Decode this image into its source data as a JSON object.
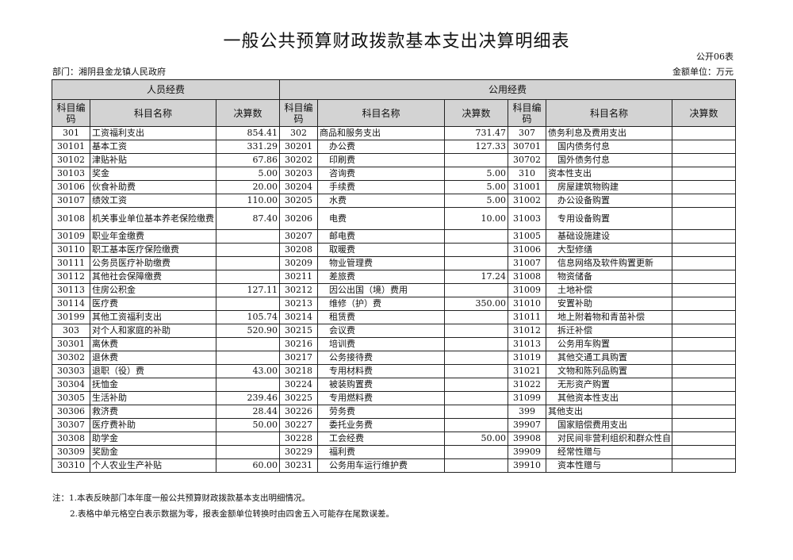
{
  "title": "一般公共预算财政拨款基本支出决算明细表",
  "form_no": "公开06表",
  "department": "部门：湘阴县金龙镇人民政府",
  "unit": "金额单位：万元",
  "headers": {
    "group_personnel": "人员经费",
    "group_public": "公用经费",
    "code": "科目编码",
    "name": "科目名称",
    "amount": "决算数"
  },
  "rows": [
    [
      "301",
      "工资福利支出",
      "854.41",
      "302",
      "商品和服务支出",
      "731.47",
      "307",
      "债务利息及费用支出",
      ""
    ],
    [
      "30101",
      "基本工资",
      "331.29",
      "30201",
      "办公费",
      "127.33",
      "30701",
      "国内债务付息",
      ""
    ],
    [
      "30102",
      "津贴补贴",
      "67.86",
      "30202",
      "印刷费",
      "",
      "30702",
      "国外债务付息",
      ""
    ],
    [
      "30103",
      "奖金",
      "5.00",
      "30203",
      "咨询费",
      "5.00",
      "310",
      "资本性支出",
      ""
    ],
    [
      "30106",
      "伙食补助费",
      "20.00",
      "30204",
      "手续费",
      "5.00",
      "31001",
      "房屋建筑物购建",
      ""
    ],
    [
      "30107",
      "绩效工资",
      "110.00",
      "30205",
      "水费",
      "5.00",
      "31002",
      "办公设备购置",
      ""
    ],
    [
      "30108",
      "机关事业单位基本养老保险缴费",
      "87.40",
      "30206",
      "电费",
      "10.00",
      "31003",
      "专用设备购置",
      ""
    ],
    [
      "30109",
      "职业年金缴费",
      "",
      "30207",
      "邮电费",
      "",
      "31005",
      "基础设施建设",
      ""
    ],
    [
      "30110",
      "职工基本医疗保险缴费",
      "",
      "30208",
      "取暖费",
      "",
      "31006",
      "大型修缮",
      ""
    ],
    [
      "30111",
      "公务员医疗补助缴费",
      "",
      "30209",
      "物业管理费",
      "",
      "31007",
      "信息网络及软件购置更新",
      ""
    ],
    [
      "30112",
      "其他社会保障缴费",
      "",
      "30211",
      "差旅费",
      "17.24",
      "31008",
      "物资储备",
      ""
    ],
    [
      "30113",
      "住房公积金",
      "127.11",
      "30212",
      "因公出国（境）费用",
      "",
      "31009",
      "土地补偿",
      ""
    ],
    [
      "30114",
      "医疗费",
      "",
      "30213",
      "维修（护）费",
      "350.00",
      "31010",
      "安置补助",
      ""
    ],
    [
      "30199",
      "其他工资福利支出",
      "105.74",
      "30214",
      "租赁费",
      "",
      "31011",
      "地上附着物和青苗补偿",
      ""
    ],
    [
      "303",
      "对个人和家庭的补助",
      "520.90",
      "30215",
      "会议费",
      "",
      "31012",
      "拆迁补偿",
      ""
    ],
    [
      "30301",
      "离休费",
      "",
      "30216",
      "培训费",
      "",
      "31013",
      "公务用车购置",
      ""
    ],
    [
      "30302",
      "退休费",
      "",
      "30217",
      "公务接待费",
      "",
      "31019",
      "其他交通工具购置",
      ""
    ],
    [
      "30303",
      "退职（役）费",
      "43.00",
      "30218",
      "专用材料费",
      "",
      "31021",
      "文物和陈列品购置",
      ""
    ],
    [
      "30304",
      "抚恤金",
      "",
      "30224",
      "被装购置费",
      "",
      "31022",
      "无形资产购置",
      ""
    ],
    [
      "30305",
      "生活补助",
      "239.46",
      "30225",
      "专用燃料费",
      "",
      "31099",
      "其他资本性支出",
      ""
    ],
    [
      "30306",
      "救济费",
      "28.44",
      "30226",
      "劳务费",
      "",
      "399",
      "其他支出",
      ""
    ],
    [
      "30307",
      "医疗费补助",
      "50.00",
      "30227",
      "委托业务费",
      "",
      "39907",
      "国家赔偿费用支出",
      ""
    ],
    [
      "30308",
      "助学金",
      "",
      "30228",
      "工会经费",
      "50.00",
      "39908",
      "对民间非营利组织和群众性自",
      ""
    ],
    [
      "30309",
      "奖励金",
      "",
      "30229",
      "福利费",
      "",
      "39909",
      "经常性赠与",
      ""
    ],
    [
      "30310",
      "个人农业生产补贴",
      "60.00",
      "30231",
      "公务用车运行维护费",
      "",
      "39910",
      "资本性赠与",
      ""
    ]
  ],
  "notes": [
    "注：1.本表反映部门本年度一般公共预算财政拨款基本支出明细情况。",
    "2.表格中单元格空白表示数据为零，报表金额单位转换时由四舍五入可能存在尾数误差。"
  ]
}
